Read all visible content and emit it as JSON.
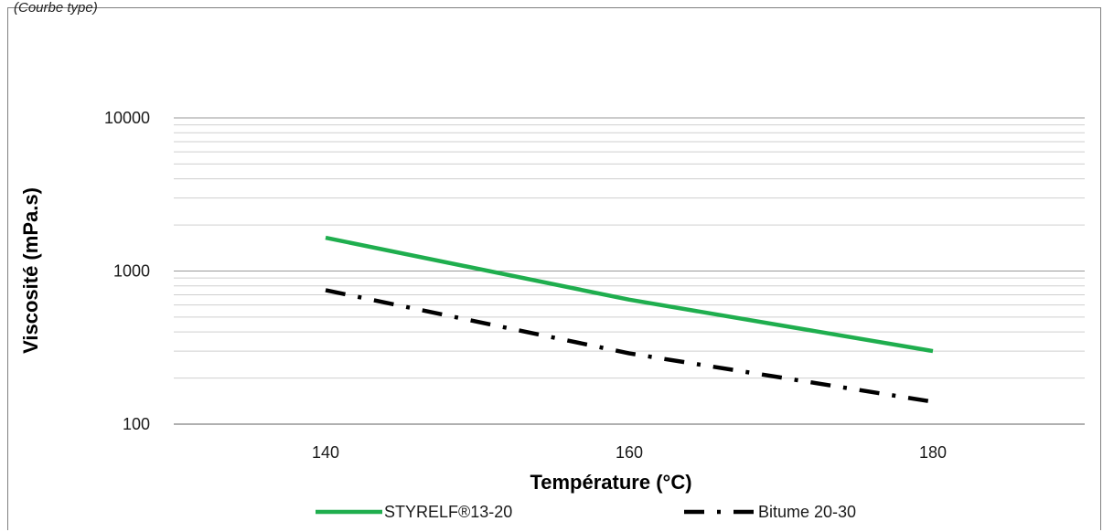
{
  "caption": "(Courbe type)",
  "chart_data": {
    "type": "line",
    "xlabel": "Température (°C)",
    "ylabel": "Viscosité (mPa.s)",
    "x_ticks": [
      "140",
      "160",
      "180"
    ],
    "y_ticks": [
      "100",
      "1000",
      "10000"
    ],
    "xlim": [
      130,
      190
    ],
    "ylim": [
      100,
      10000
    ],
    "y_scale": "log",
    "grid": "horizontal major and minor",
    "legend": "bottom",
    "series": [
      {
        "name": "STYRELF®13-20",
        "x": [
          140,
          160,
          180
        ],
        "y": [
          1650,
          650,
          300
        ],
        "color": "#1fae4e",
        "style": "solid"
      },
      {
        "name": "Bitume 20-30",
        "x": [
          140,
          160,
          180
        ],
        "y": [
          750,
          290,
          140
        ],
        "color": "#000000",
        "style": "dash-dot"
      }
    ]
  }
}
